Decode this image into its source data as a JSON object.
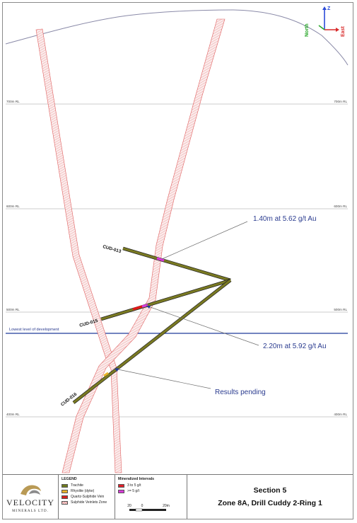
{
  "section": {
    "rl_labels": [
      "700m RL",
      "700m RL",
      "600m RL",
      "600m RL",
      "500m RL",
      "500m RL",
      "400m RL",
      "400m RL"
    ],
    "development_label": "Lowest level of development",
    "holes": [
      "CUD-013",
      "CUD-015",
      "CUD-016"
    ],
    "callouts": [
      "1.40m at 5.62 g/t Au",
      "2.20m at 5.92 g/t Au",
      "Results pending"
    ],
    "orientation": {
      "up": "Z",
      "north": "North",
      "east": "East"
    },
    "colors": {
      "topography": "#8a8aa8",
      "rl_line": "#bdbdbd",
      "development_line": "#1f3a9a",
      "trachite": "#7a7a22",
      "sulphide_zone": "#e06060",
      "high_grade": "#e01818",
      "callout_line": "#6e6e6e"
    }
  },
  "footer": {
    "logo": {
      "name": "VELOCITY",
      "subtitle": "MINERALS LTD."
    },
    "legend": {
      "title": "LEGEND",
      "items": [
        {
          "label": "Trachite",
          "color": "#6f7a1e"
        },
        {
          "label": "Rhyolite (dyke)",
          "color": "#e8b32a"
        },
        {
          "label": "Quartz-Sulphide Vein",
          "color": "#d8201e"
        },
        {
          "label": "Sulphide Veinlets Zone",
          "color": "#f3c9c9"
        }
      ]
    },
    "intervals": {
      "title": "Mineralized Intervals",
      "items": [
        {
          "label": "3 to 5 g/t",
          "color": "#e0202a"
        },
        {
          "label": ">= 5 g/t",
          "color": "#d83ad8"
        }
      ],
      "scale_labels": [
        "20",
        "0",
        "20m"
      ]
    },
    "title": {
      "line1": "Section 5",
      "line2": "Zone 8A, Drill Cuddy 2-Ring 1"
    }
  }
}
